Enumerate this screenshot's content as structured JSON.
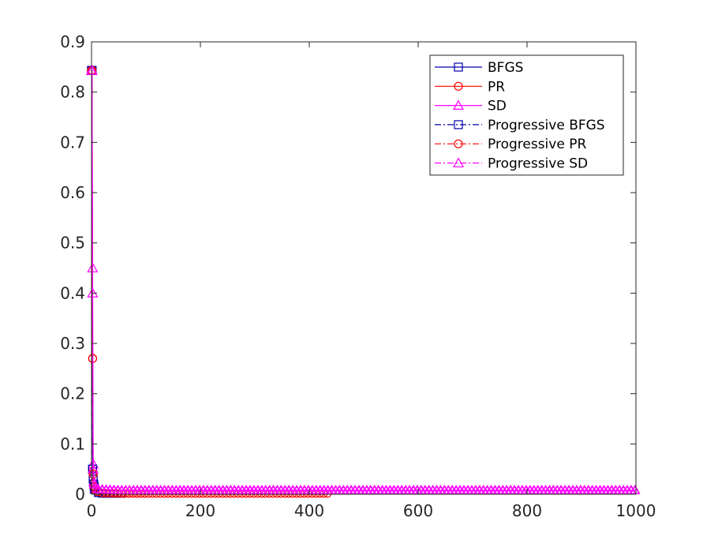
{
  "chart_data": {
    "type": "line",
    "title": "",
    "xlabel": "",
    "ylabel": "",
    "xlim": [
      0,
      1000
    ],
    "ylim": [
      0,
      0.9
    ],
    "x_ticks": [
      "0",
      "200",
      "400",
      "600",
      "800",
      "1000"
    ],
    "y_ticks": [
      "0",
      "0.1",
      "0.2",
      "0.3",
      "0.4",
      "0.5",
      "0.6",
      "0.7",
      "0.8",
      "0.9"
    ],
    "grid": false,
    "legend_position": "top-right",
    "series": [
      {
        "name": "BFGS",
        "color": "#0000aa",
        "marker": "square",
        "dash": "solid",
        "x": [
          0,
          1,
          2,
          3,
          4,
          5,
          7,
          10,
          15,
          20,
          40,
          60
        ],
        "y": [
          0.843,
          0.843,
          0.05,
          0.036,
          0.02,
          0.01,
          0.006,
          0.003,
          0.002,
          0.001,
          0.001,
          0.001
        ]
      },
      {
        "name": "PR",
        "color": "#ff0000",
        "marker": "circle",
        "dash": "solid",
        "x": [
          0,
          1,
          2,
          3,
          4,
          5,
          10,
          20,
          100,
          200,
          300,
          440
        ],
        "y": [
          0.843,
          0.843,
          0.27,
          0.045,
          0.02,
          0.01,
          0.004,
          0.002,
          0.001,
          0.001,
          0.001,
          0.001
        ]
      },
      {
        "name": "SD",
        "color": "#ff00ff",
        "marker": "triangle",
        "dash": "solid",
        "x": [
          0,
          1,
          2,
          3,
          4,
          6,
          10,
          50,
          100,
          300,
          500,
          700,
          900,
          1000
        ],
        "y": [
          0.843,
          0.843,
          0.45,
          0.06,
          0.025,
          0.012,
          0.01,
          0.008,
          0.008,
          0.008,
          0.008,
          0.008,
          0.008,
          0.008
        ]
      },
      {
        "name": "Progressive BFGS",
        "color": "#0000aa",
        "marker": "square",
        "dash": "dashdot",
        "x": [
          0,
          1,
          2,
          3,
          5,
          8,
          12,
          20,
          30
        ],
        "y": [
          0.843,
          0.843,
          0.05,
          0.03,
          0.015,
          0.006,
          0.003,
          0.002,
          0.001
        ]
      },
      {
        "name": "Progressive PR",
        "color": "#ff0000",
        "marker": "circle",
        "dash": "dashdot",
        "x": [
          0,
          1,
          2,
          3,
          5,
          10,
          20,
          50,
          100
        ],
        "y": [
          0.843,
          0.843,
          0.27,
          0.04,
          0.015,
          0.005,
          0.002,
          0.001,
          0.001
        ]
      },
      {
        "name": "Progressive SD",
        "color": "#ff00ff",
        "marker": "triangle",
        "dash": "dashdot",
        "x": [
          0,
          1,
          2,
          3,
          5,
          10,
          50,
          100,
          300,
          500,
          660,
          800,
          1000
        ],
        "y": [
          0.843,
          0.843,
          0.4,
          0.05,
          0.02,
          0.01,
          0.008,
          0.008,
          0.008,
          0.008,
          0.008,
          0.008,
          0.008
        ]
      }
    ]
  }
}
